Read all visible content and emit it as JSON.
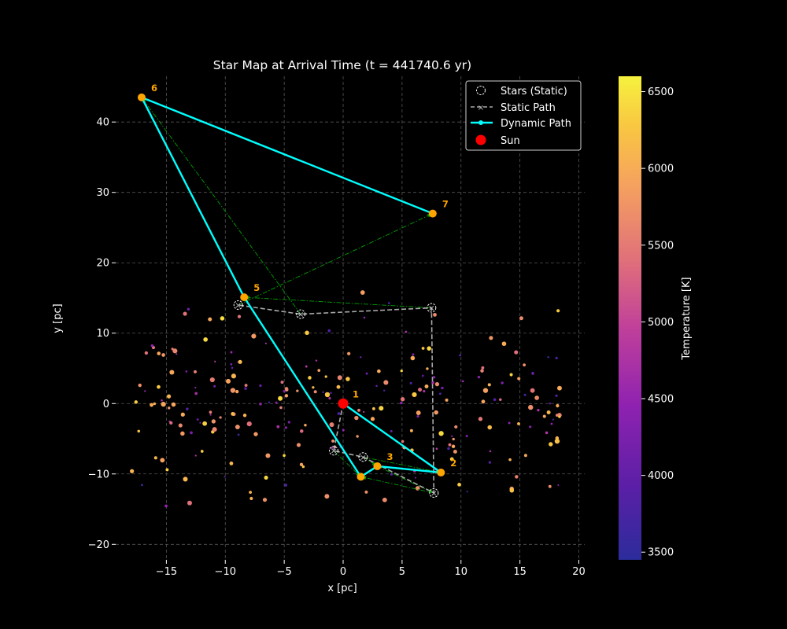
{
  "chart_data": {
    "type": "scatter",
    "title": "Star Map at Arrival Time (t = 441740.6 yr)",
    "xlabel": "x [pc]",
    "ylabel": "y [pc]",
    "xlim": [
      -19.3,
      20.5
    ],
    "ylim": [
      -22.2,
      46.5
    ],
    "x_ticks": [
      -15,
      -10,
      -5,
      0,
      5,
      10,
      15,
      20
    ],
    "x_tick_labels": [
      "−15",
      "−10",
      "−5",
      "0",
      "5",
      "10",
      "15",
      "20"
    ],
    "y_ticks": [
      -20,
      -10,
      0,
      10,
      20,
      30,
      40
    ],
    "y_tick_labels": [
      "−20",
      "−10",
      "0",
      "10",
      "20",
      "30",
      "40"
    ],
    "grid": true,
    "legend": {
      "placement": "top-right",
      "entries": [
        "Stars (Static)",
        "Static Path",
        "Dynamic Path",
        "Sun"
      ]
    },
    "colorbar": {
      "label": "Temperature [K]",
      "range": [
        3450,
        6600
      ],
      "ticks": [
        3500,
        4000,
        4500,
        5000,
        5500,
        6000,
        6500
      ],
      "tick_labels": [
        "3500",
        "4000",
        "4500",
        "5000",
        "5500",
        "6000",
        "6500"
      ],
      "colormap": "plasma"
    },
    "sun": {
      "x": 0,
      "y": 0
    },
    "static_stars": [
      {
        "x": -0.8,
        "y": -6.7
      },
      {
        "x": 1.7,
        "y": -7.6
      },
      {
        "x": 7.7,
        "y": -12.7
      },
      {
        "x": 7.5,
        "y": 13.6
      },
      {
        "x": -3.6,
        "y": 12.7
      },
      {
        "x": -8.9,
        "y": 14.0
      }
    ],
    "static_path": {
      "x": [
        0,
        -0.8,
        1.7,
        7.7,
        7.5,
        -3.6,
        -8.9
      ],
      "y": [
        0,
        -6.7,
        -7.6,
        -12.7,
        13.6,
        12.7,
        14.0
      ]
    },
    "dynamic_path": {
      "x": [
        0,
        8.3,
        2.9,
        1.5,
        -8.4,
        -17.1,
        7.6
      ],
      "y": [
        0,
        -9.8,
        -8.9,
        -10.4,
        15.1,
        43.5,
        27.0
      ]
    },
    "stop_labels": [
      {
        "label": "1",
        "x": 0,
        "y": 0
      },
      {
        "label": "2",
        "x": 8.3,
        "y": -9.8
      },
      {
        "label": "3",
        "x": 2.9,
        "y": -8.9
      },
      {
        "label": "5",
        "x": -8.4,
        "y": 15.1
      },
      {
        "label": "6",
        "x": -17.1,
        "y": 43.5
      },
      {
        "label": "7",
        "x": 7.6,
        "y": 27.0
      }
    ],
    "displacement_links": [
      {
        "x": [
          -0.8,
          1.5
        ],
        "y": [
          -6.7,
          -10.4
        ]
      },
      {
        "x": [
          1.7,
          2.9
        ],
        "y": [
          -7.6,
          -8.9
        ]
      },
      {
        "x": [
          7.7,
          1.5
        ],
        "y": [
          -12.7,
          -10.4
        ]
      },
      {
        "x": [
          7.5,
          -8.4
        ],
        "y": [
          13.6,
          15.1
        ]
      },
      {
        "x": [
          -3.6,
          -17.1
        ],
        "y": [
          12.7,
          43.5
        ]
      },
      {
        "x": [
          -8.9,
          7.6
        ],
        "y": [
          14.0,
          27.0
        ]
      },
      {
        "x": [
          1.7,
          8.3
        ],
        "y": [
          -7.6,
          -9.8
        ]
      },
      {
        "x": [
          2.9,
          7.7
        ],
        "y": [
          -8.9,
          -12.7
        ]
      }
    ],
    "field_stars": {
      "count": 260,
      "x_range": [
        -18,
        18.5
      ],
      "y_range": [
        -20,
        19
      ],
      "temperature_range": [
        3500,
        6600
      ]
    },
    "colors": {
      "background": "#000000",
      "dynamic_path": "#00ffff",
      "static_path": "#aaaaaa",
      "displacement_link": "#00a000",
      "sun": "#ff0000",
      "stop_marker": "#ffa500",
      "stop_label": "#ffa500",
      "grid": "#555555"
    }
  }
}
